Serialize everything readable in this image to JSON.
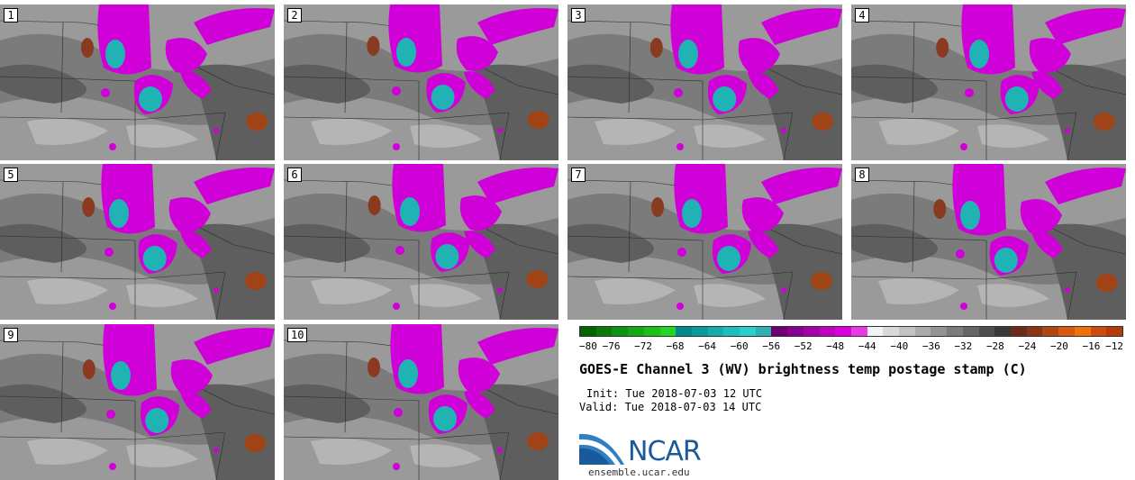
{
  "panels": [
    {
      "label": "1"
    },
    {
      "label": "2"
    },
    {
      "label": "3"
    },
    {
      "label": "4"
    },
    {
      "label": "5"
    },
    {
      "label": "6"
    },
    {
      "label": "7"
    },
    {
      "label": "8"
    },
    {
      "label": "9"
    },
    {
      "label": "10"
    }
  ],
  "colorbar": {
    "colors": [
      "#006400",
      "#0b7a0b",
      "#119111",
      "#17a817",
      "#1dbf1d",
      "#23d623",
      "#008b8b",
      "#0a9c9c",
      "#14adad",
      "#1ebebe",
      "#28cfcf",
      "#32b0b0",
      "#6e0075",
      "#8a008f",
      "#a600aa",
      "#c200c4",
      "#dd00df",
      "#e839e8",
      "#f2f2f2",
      "#d9d9d9",
      "#c2c2c2",
      "#aaaaaa",
      "#939393",
      "#7c7c7c",
      "#656565",
      "#4f4f4f",
      "#383838",
      "#6b2a1a",
      "#8c3516",
      "#b34712",
      "#d95a0e",
      "#f0700a",
      "#d04a10",
      "#b8380e"
    ],
    "tick_labels": [
      "−80",
      "−76",
      "−72",
      "−68",
      "−64",
      "−60",
      "−56",
      "−52",
      "−48",
      "−44",
      "−40",
      "−36",
      "−32",
      "−28",
      "−24",
      "−20",
      "−16",
      "−12"
    ]
  },
  "title": "GOES-E Channel 3 (WV) brightness temp postage stamp (C)",
  "init_label": "Init: Tue 2018-07-03 12 UTC",
  "valid_label": "Valid: Tue 2018-07-03 14 UTC",
  "logo_text": "NCAR",
  "url": "ensemble.ucar.edu"
}
